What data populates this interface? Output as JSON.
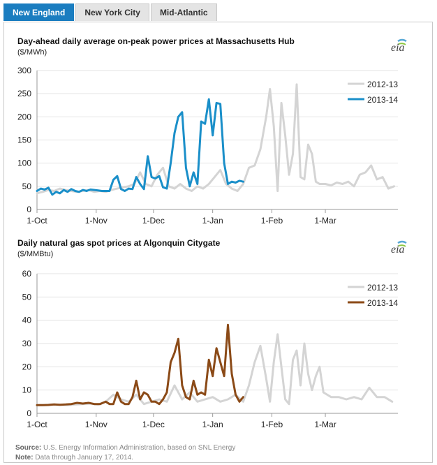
{
  "tabs": [
    {
      "label": "New England",
      "active": true
    },
    {
      "label": "New York City",
      "active": false
    },
    {
      "label": "Mid-Atlantic",
      "active": false
    }
  ],
  "logo_text": "eia",
  "colors": {
    "tab_active": "#1a7dc0",
    "series_2012": "#d4d4d4",
    "power_2013": "#1a8fc9",
    "gas_2013": "#8b4a17"
  },
  "source": {
    "label": "Source:",
    "text": "U.S. Energy Information Administration, based on SNL Energy"
  },
  "note": {
    "label": "Note:",
    "text": "Data through January 17, 2014."
  },
  "chart_data": [
    {
      "type": "line",
      "title": "Day-ahead daily average on-peak power prices at Massachusetts  Hub",
      "ylabel": "($/MWh)",
      "ylim": [
        0,
        300
      ],
      "yticks": [
        0,
        50,
        100,
        150,
        200,
        250,
        300
      ],
      "xticks": [
        {
          "day": 0,
          "label": "1-Oct"
        },
        {
          "day": 31,
          "label": "1-Nov"
        },
        {
          "day": 61,
          "label": "1-Dec"
        },
        {
          "day": 92,
          "label": "1-Jan"
        },
        {
          "day": 123,
          "label": "1-Feb"
        },
        {
          "day": 151,
          "label": "1-Mar"
        }
      ],
      "xlim": [
        0,
        189
      ],
      "legend_position": "top-right",
      "series": [
        {
          "name": "2012-13",
          "color": "#d4d4d4",
          "x": [
            0,
            3,
            6,
            9,
            12,
            15,
            18,
            21,
            24,
            27,
            30,
            33,
            36,
            39,
            42,
            45,
            48,
            51,
            54,
            57,
            60,
            63,
            66,
            69,
            72,
            75,
            78,
            81,
            84,
            87,
            90,
            93,
            96,
            99,
            102,
            105,
            108,
            111,
            114,
            117,
            120,
            122,
            124,
            126,
            128,
            130,
            132,
            134,
            136,
            138,
            140,
            142,
            144,
            146,
            148,
            151,
            154,
            157,
            160,
            163,
            166,
            169,
            172,
            175,
            178,
            181,
            184,
            187
          ],
          "y": [
            35,
            38,
            42,
            40,
            45,
            42,
            40,
            38,
            40,
            42,
            38,
            40,
            38,
            42,
            45,
            48,
            50,
            55,
            80,
            55,
            50,
            75,
            90,
            50,
            45,
            55,
            45,
            40,
            50,
            45,
            55,
            70,
            85,
            55,
            45,
            40,
            55,
            90,
            95,
            130,
            200,
            260,
            180,
            40,
            230,
            160,
            75,
            120,
            270,
            70,
            65,
            140,
            120,
            60,
            55,
            55,
            52,
            58,
            55,
            60,
            50,
            75,
            80,
            95,
            65,
            70,
            45,
            50
          ]
        },
        {
          "name": "2013-14",
          "color": "#1a8fc9",
          "x": [
            0,
            2,
            4,
            6,
            8,
            10,
            12,
            14,
            16,
            18,
            20,
            22,
            24,
            26,
            28,
            30,
            32,
            34,
            36,
            38,
            40,
            42,
            44,
            46,
            48,
            50,
            52,
            54,
            56,
            58,
            60,
            62,
            64,
            66,
            68,
            70,
            72,
            74,
            76,
            78,
            80,
            82,
            84,
            86,
            88,
            90,
            92,
            94,
            96,
            98,
            100,
            102,
            104,
            106,
            108
          ],
          "y": [
            40,
            45,
            43,
            47,
            32,
            38,
            35,
            42,
            38,
            44,
            40,
            38,
            42,
            40,
            43,
            42,
            41,
            40,
            40,
            40,
            64,
            72,
            44,
            40,
            45,
            44,
            70,
            55,
            44,
            115,
            70,
            67,
            72,
            48,
            45,
            100,
            165,
            200,
            210,
            90,
            50,
            80,
            55,
            190,
            185,
            238,
            160,
            230,
            228,
            100,
            55,
            60,
            58,
            62,
            60
          ]
        }
      ]
    },
    {
      "type": "line",
      "title": "Daily natural gas spot  prices at Algonquin Citygate",
      "ylabel": "($/MMBtu)",
      "ylim": [
        0,
        60
      ],
      "yticks": [
        0,
        10,
        20,
        30,
        40,
        50,
        60
      ],
      "xticks": [
        {
          "day": 0,
          "label": "1-Oct"
        },
        {
          "day": 31,
          "label": "1-Nov"
        },
        {
          "day": 61,
          "label": "1-Dec"
        },
        {
          "day": 92,
          "label": "1-Jan"
        },
        {
          "day": 123,
          "label": "1-Feb"
        },
        {
          "day": 151,
          "label": "1-Mar"
        }
      ],
      "xlim": [
        0,
        189
      ],
      "legend_position": "top-right",
      "series": [
        {
          "name": "2012-13",
          "color": "#d4d4d4",
          "x": [
            0,
            4,
            8,
            12,
            16,
            20,
            24,
            28,
            32,
            36,
            40,
            44,
            48,
            52,
            56,
            60,
            64,
            68,
            72,
            76,
            80,
            84,
            88,
            92,
            96,
            100,
            104,
            108,
            111,
            114,
            117,
            120,
            122,
            124,
            126,
            128,
            130,
            132,
            134,
            136,
            138,
            140,
            142,
            144,
            146,
            148,
            150,
            154,
            158,
            162,
            166,
            170,
            174,
            178,
            182,
            186
          ],
          "y": [
            3.5,
            3.6,
            3.8,
            3.7,
            3.5,
            3.8,
            4.0,
            4.2,
            3.8,
            5,
            8,
            6,
            5,
            8,
            4,
            5,
            6,
            5,
            12,
            6,
            9,
            5,
            6,
            7,
            5,
            6,
            8,
            5,
            12,
            22,
            29,
            15,
            5,
            22,
            34,
            20,
            6,
            4,
            23,
            27,
            12,
            30,
            17,
            10,
            16,
            20,
            9,
            7,
            7,
            6,
            7,
            6,
            11,
            7,
            7,
            5
          ]
        },
        {
          "name": "2013-14",
          "color": "#8b4a17",
          "x": [
            0,
            3,
            6,
            9,
            12,
            15,
            18,
            21,
            24,
            27,
            30,
            33,
            36,
            38,
            40,
            42,
            44,
            46,
            48,
            50,
            52,
            54,
            56,
            58,
            60,
            62,
            64,
            66,
            68,
            70,
            72,
            74,
            76,
            78,
            80,
            82,
            84,
            86,
            88,
            90,
            92,
            94,
            96,
            98,
            100,
            102,
            104,
            106,
            108
          ],
          "y": [
            3.5,
            3.5,
            3.6,
            3.8,
            3.7,
            3.8,
            4,
            4.5,
            4.2,
            4.5,
            4,
            4,
            5,
            4,
            4,
            9,
            5,
            4,
            4,
            7,
            14,
            6,
            9,
            8,
            5,
            5,
            4,
            6,
            9,
            22,
            26,
            32,
            12,
            7,
            6,
            14,
            8,
            9,
            8,
            23,
            16,
            28,
            22,
            16,
            38,
            17,
            8,
            5,
            7
          ]
        }
      ]
    }
  ]
}
